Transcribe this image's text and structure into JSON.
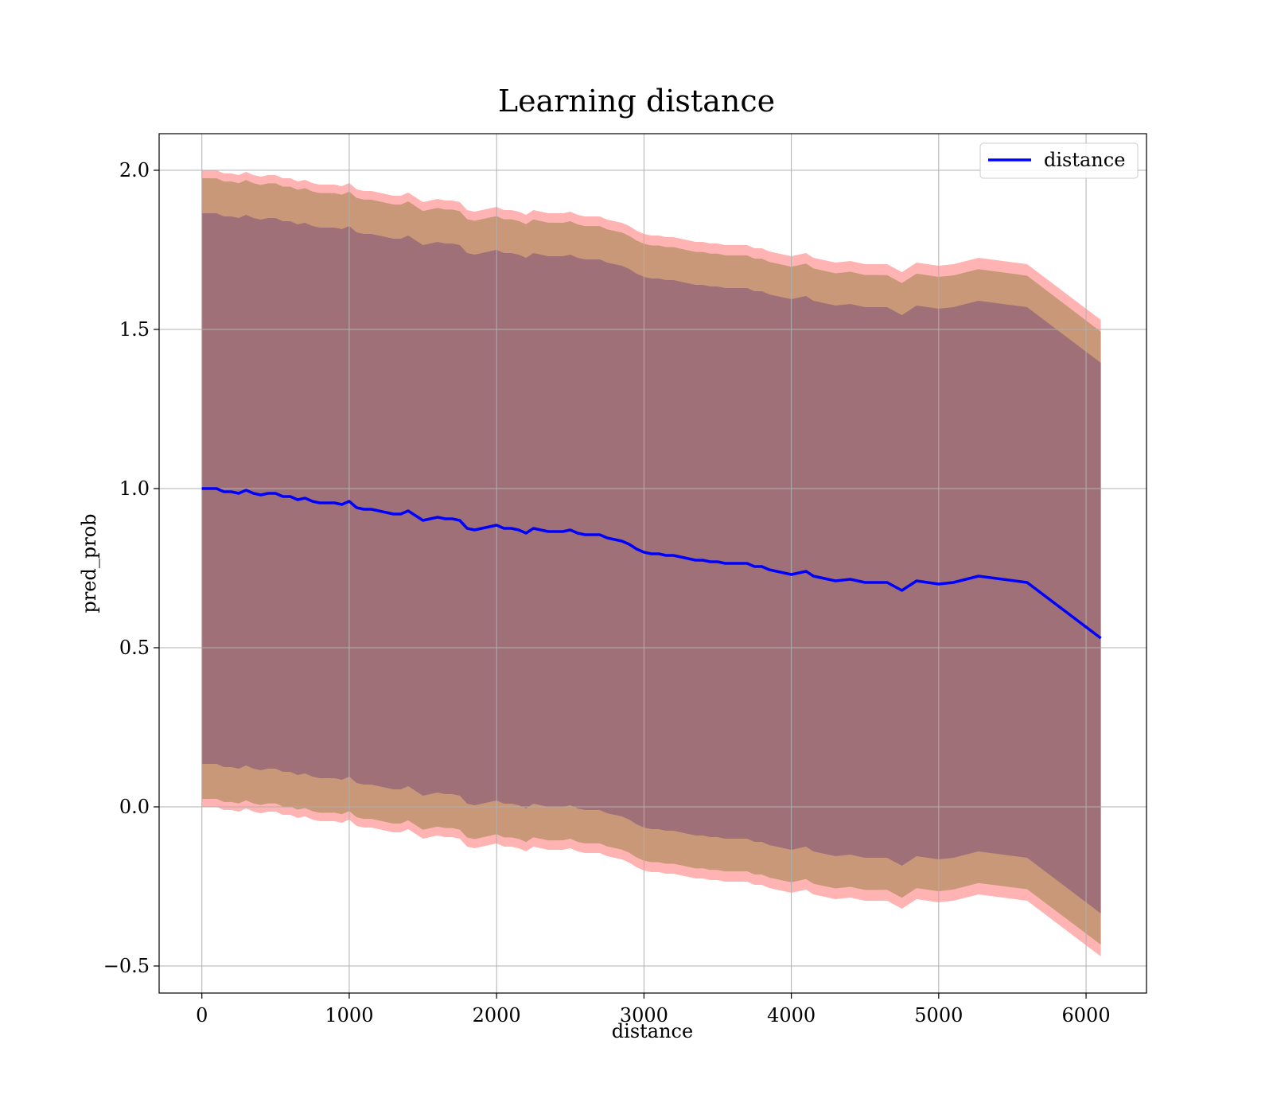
{
  "chart_data": {
    "type": "line",
    "title": "Learning distance",
    "xlabel": "distance",
    "ylabel": "pred_prob",
    "xlim": [
      -290,
      6410
    ],
    "ylim": [
      -0.585,
      2.115
    ],
    "x_ticks": [
      0,
      1000,
      2000,
      3000,
      4000,
      5000,
      6000
    ],
    "y_ticks": [
      -0.5,
      0.0,
      0.5,
      1.0,
      1.5,
      2.0
    ],
    "x_tick_labels": [
      "0",
      "1000",
      "2000",
      "3000",
      "4000",
      "5000",
      "6000"
    ],
    "y_tick_labels": [
      "−0.5",
      "0.0",
      "0.5",
      "1.0",
      "1.5",
      "2.0"
    ],
    "grid": true,
    "legend_position": "top-right",
    "colors": {
      "line": "#0000ff",
      "band_outer": "#ff9999",
      "band_middle": "#c89878",
      "band_inner": "#a07078",
      "grid": "#b0b0b0"
    },
    "series": [
      {
        "name": "distance",
        "x": [
          0,
          100,
          150,
          200,
          250,
          300,
          350,
          400,
          450,
          500,
          550,
          600,
          650,
          700,
          750,
          800,
          850,
          900,
          950,
          1000,
          1050,
          1100,
          1150,
          1200,
          1250,
          1300,
          1350,
          1400,
          1450,
          1500,
          1550,
          1600,
          1650,
          1700,
          1750,
          1800,
          1850,
          1900,
          1950,
          2000,
          2050,
          2100,
          2150,
          2200,
          2250,
          2300,
          2350,
          2400,
          2450,
          2500,
          2550,
          2600,
          2650,
          2700,
          2750,
          2800,
          2850,
          2900,
          2950,
          3000,
          3050,
          3100,
          3150,
          3200,
          3250,
          3300,
          3350,
          3400,
          3450,
          3500,
          3550,
          3600,
          3650,
          3700,
          3750,
          3800,
          3850,
          3900,
          3950,
          4000,
          4050,
          4100,
          4150,
          4200,
          4300,
          4400,
          4500,
          4600,
          4650,
          4750,
          4850,
          5000,
          5100,
          5270,
          5600,
          6100
        ],
        "y": [
          1.0,
          1.0,
          0.99,
          0.99,
          0.985,
          0.995,
          0.985,
          0.98,
          0.985,
          0.985,
          0.975,
          0.975,
          0.965,
          0.97,
          0.96,
          0.955,
          0.955,
          0.955,
          0.95,
          0.96,
          0.94,
          0.935,
          0.935,
          0.93,
          0.925,
          0.92,
          0.92,
          0.93,
          0.915,
          0.9,
          0.905,
          0.91,
          0.905,
          0.905,
          0.9,
          0.875,
          0.87,
          0.875,
          0.88,
          0.885,
          0.875,
          0.875,
          0.87,
          0.86,
          0.875,
          0.87,
          0.865,
          0.865,
          0.865,
          0.87,
          0.86,
          0.855,
          0.855,
          0.855,
          0.845,
          0.84,
          0.835,
          0.825,
          0.81,
          0.8,
          0.795,
          0.795,
          0.79,
          0.79,
          0.785,
          0.78,
          0.775,
          0.775,
          0.77,
          0.77,
          0.765,
          0.765,
          0.765,
          0.765,
          0.755,
          0.755,
          0.745,
          0.74,
          0.735,
          0.73,
          0.735,
          0.74,
          0.725,
          0.72,
          0.71,
          0.715,
          0.705,
          0.705,
          0.705,
          0.68,
          0.71,
          0.7,
          0.705,
          0.725,
          0.705,
          0.53
        ]
      }
    ]
  }
}
